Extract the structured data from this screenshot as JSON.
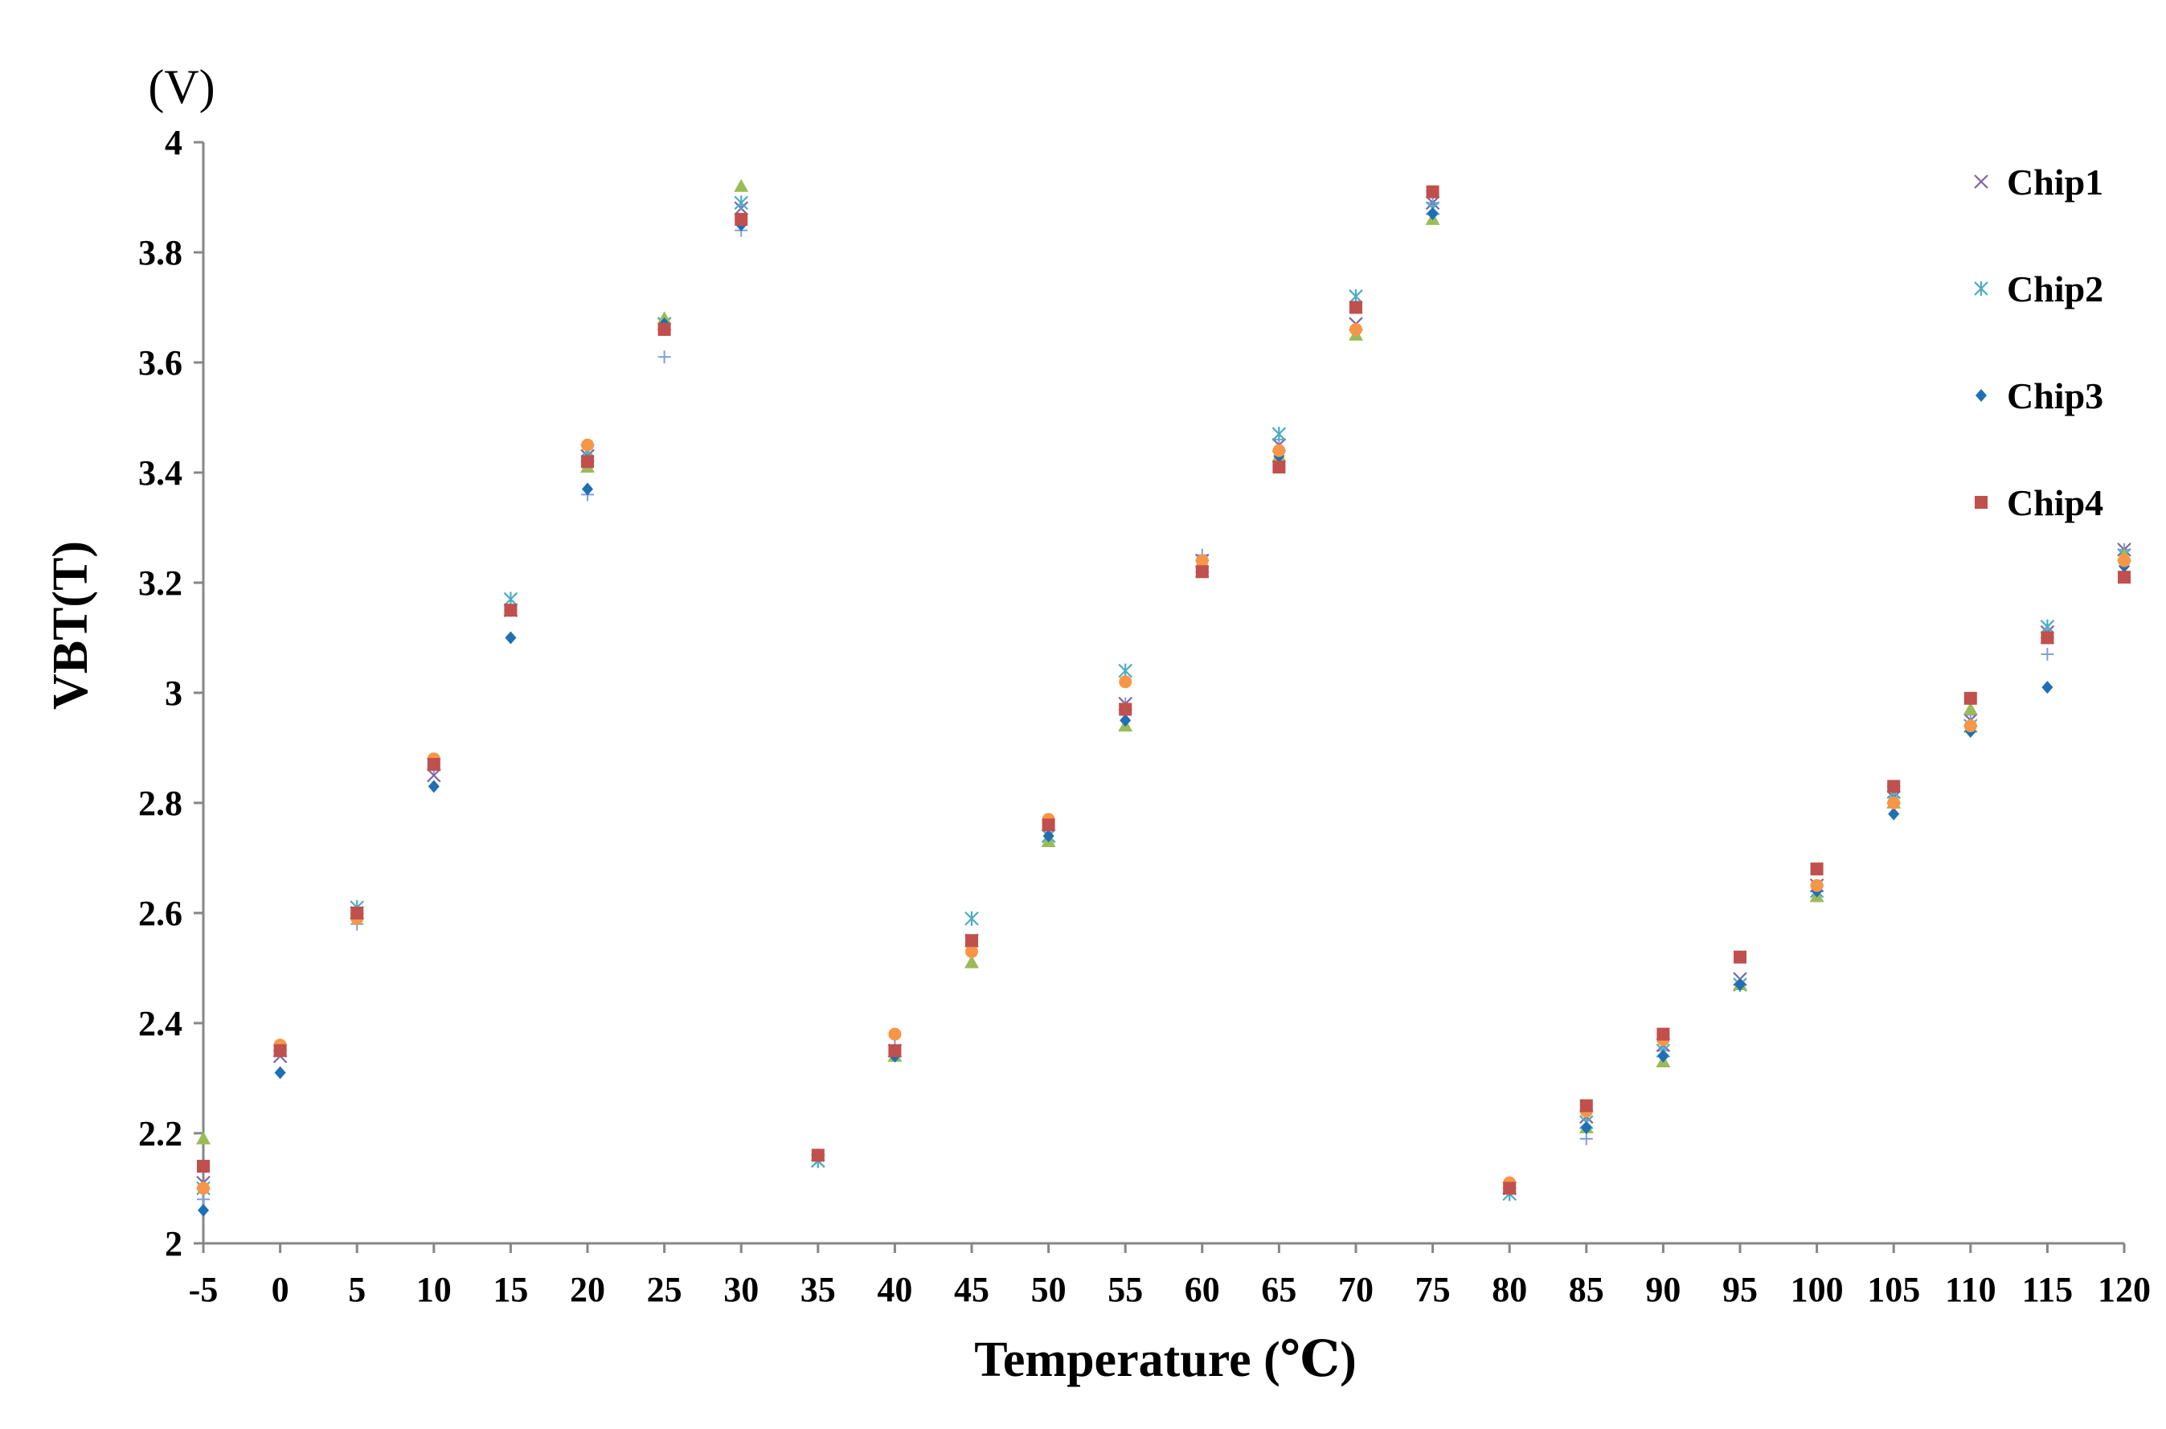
{
  "chart_data": {
    "type": "scatter",
    "title": "",
    "xlabel": "Temperature (℃)",
    "ylabel": "VBT(T)",
    "y_unit": "(V)",
    "xlim": [
      -5,
      120
    ],
    "ylim": [
      2,
      4
    ],
    "x_ticks": [
      "-5",
      "0",
      "5",
      "10",
      "15",
      "20",
      "25",
      "30",
      "35",
      "40",
      "45",
      "50",
      "55",
      "60",
      "65",
      "70",
      "75",
      "80",
      "85",
      "90",
      "95",
      "100",
      "105",
      "110",
      "115",
      "120"
    ],
    "y_ticks": [
      "2",
      "2.2",
      "2.4",
      "2.6",
      "2.8",
      "3",
      "3.2",
      "3.4",
      "3.6",
      "3.8",
      "4"
    ],
    "grid": false,
    "legend_position": "top-right",
    "x": [
      -5,
      0,
      5,
      10,
      15,
      20,
      25,
      30,
      35,
      40,
      45,
      50,
      55,
      60,
      65,
      70,
      75,
      80,
      85,
      90,
      95,
      100,
      105,
      110,
      115,
      120
    ],
    "series": [
      {
        "name": "Chip1",
        "marker": "x",
        "color": "#8064A2",
        "values": [
          2.11,
          2.34,
          2.6,
          2.85,
          3.15,
          3.43,
          3.67,
          3.88,
          2.15,
          2.35,
          2.55,
          2.74,
          2.98,
          3.24,
          3.45,
          3.67,
          3.89,
          2.1,
          2.23,
          2.36,
          2.48,
          2.65,
          2.81,
          2.95,
          3.11,
          3.26
        ]
      },
      {
        "name": "Chip2",
        "marker": "asterisk",
        "color": "#4BACC6",
        "values": [
          2.1,
          2.35,
          2.61,
          2.87,
          3.17,
          3.44,
          3.67,
          3.89,
          2.15,
          2.35,
          2.59,
          2.74,
          3.04,
          3.23,
          3.47,
          3.72,
          3.88,
          2.09,
          2.22,
          2.35,
          2.47,
          2.64,
          2.82,
          2.94,
          3.12,
          3.25
        ]
      },
      {
        "name": "Chip3",
        "marker": "diamond",
        "color": "#1F6FB4",
        "values": [
          2.06,
          2.31,
          2.6,
          2.83,
          3.1,
          3.37,
          3.67,
          3.85,
          2.16,
          2.34,
          2.54,
          2.74,
          2.95,
          3.22,
          3.43,
          3.66,
          3.87,
          2.1,
          2.21,
          2.34,
          2.47,
          2.64,
          2.78,
          2.93,
          3.01,
          3.23
        ]
      },
      {
        "name": "Chip4",
        "marker": "square",
        "color": "#C0504D",
        "values": [
          2.14,
          2.35,
          2.6,
          2.87,
          3.15,
          3.42,
          3.66,
          3.86,
          2.16,
          2.35,
          2.55,
          2.76,
          2.97,
          3.22,
          3.41,
          3.7,
          3.91,
          2.1,
          2.25,
          2.38,
          2.52,
          2.68,
          2.83,
          2.99,
          3.1,
          3.21
        ]
      },
      {
        "name": "",
        "marker": "triangle",
        "color": "#9BBB59",
        "values": [
          2.19,
          2.35,
          2.6,
          2.87,
          3.15,
          3.41,
          3.68,
          3.92,
          2.16,
          2.34,
          2.51,
          2.73,
          2.94,
          3.22,
          3.43,
          3.65,
          3.86,
          2.1,
          2.21,
          2.33,
          2.47,
          2.63,
          2.8,
          2.97,
          3.1,
          3.25
        ]
      },
      {
        "name": "",
        "marker": "circle",
        "color": "#F79646",
        "values": [
          2.1,
          2.36,
          2.59,
          2.88,
          3.15,
          3.45,
          3.66,
          3.86,
          2.16,
          2.38,
          2.53,
          2.77,
          3.02,
          3.24,
          3.44,
          3.66,
          3.91,
          2.11,
          2.24,
          2.37,
          2.52,
          2.65,
          2.8,
          2.94,
          3.1,
          3.24
        ]
      },
      {
        "name": "",
        "marker": "plus",
        "color": "#7F9FD9",
        "values": [
          2.08,
          2.35,
          2.58,
          2.86,
          3.15,
          3.36,
          3.61,
          3.84,
          2.15,
          2.36,
          2.54,
          2.75,
          2.98,
          3.25,
          3.46,
          3.66,
          3.89,
          2.09,
          2.19,
          2.35,
          2.47,
          2.64,
          2.81,
          2.96,
          3.07,
          3.26
        ]
      }
    ]
  }
}
